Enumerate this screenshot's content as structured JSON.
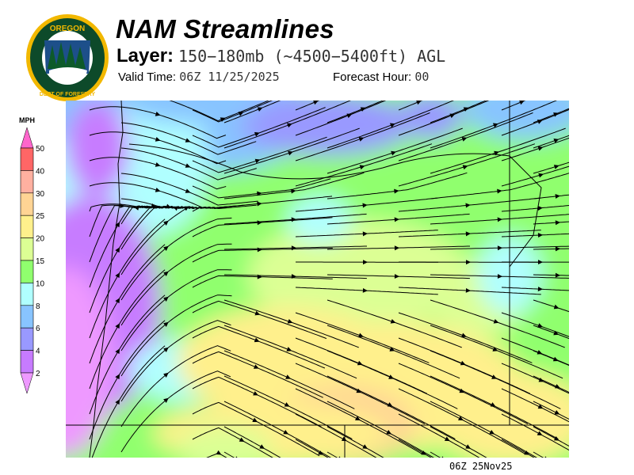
{
  "header": {
    "title": "NAM Streamlines",
    "layer_label": "Layer:",
    "layer_value": "150−180mb (~4500−5400ft) AGL",
    "valid_label": "Valid Time:",
    "valid_value": "06Z 11/25/2025",
    "forecast_hour_label": "Forecast Hour:",
    "forecast_hour_value": "00"
  },
  "logo": {
    "text_top": "OREGON",
    "text_bottom": "DEPARTMENT OF FORESTRY",
    "colors": {
      "ring": "#f2b800",
      "field": "#0d4a2a"
    }
  },
  "legend": {
    "unit": "MPH",
    "labels": [
      "50",
      "40",
      "30",
      "25",
      "20",
      "15",
      "10",
      "8",
      "6",
      "4",
      "2"
    ],
    "colors": [
      "#ff66cc",
      "#ff6666",
      "#ffb0a0",
      "#ffd494",
      "#fff08c",
      "#dcff94",
      "#90ff6e",
      "#b0ffff",
      "#88c4ff",
      "#9999ff",
      "#c77bff",
      "#ee99ff"
    ]
  },
  "map": {
    "flow": "streamlines",
    "background_color": "#90ff6e"
  },
  "footer": {
    "stamp": "06Z 25Nov25"
  }
}
